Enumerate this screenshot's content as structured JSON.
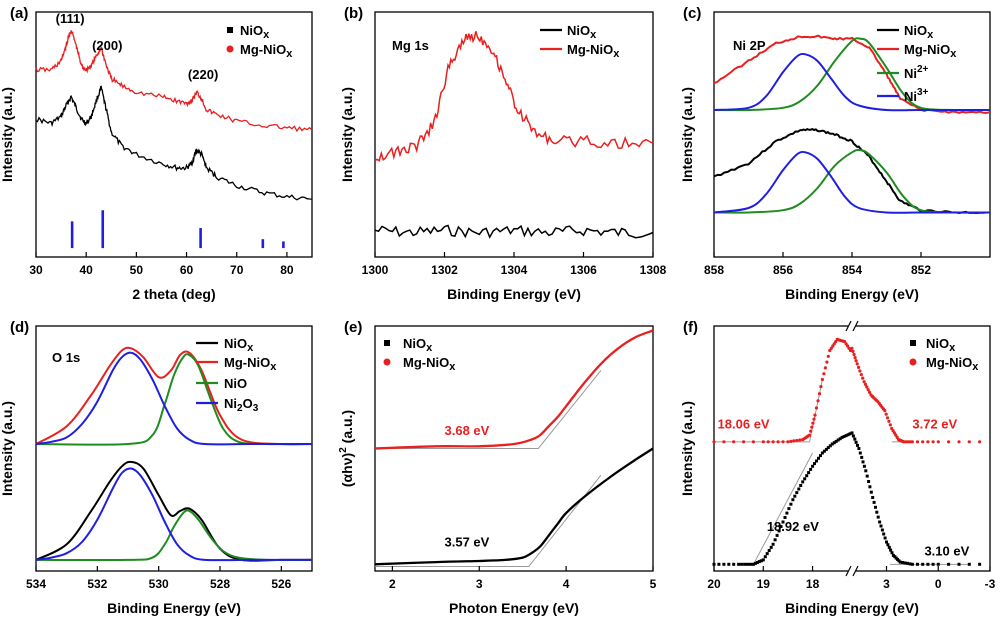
{
  "colors": {
    "black": "#000000",
    "red": "#e8201f",
    "green": "#1f8c1f",
    "blue": "#1f1fe0",
    "gray": "#9a9a9a"
  },
  "chart_data": [
    {
      "panel": "(a)",
      "type": "line",
      "xlabel": "2 theta (deg)",
      "ylabel": "Intensity (a.u.)",
      "xlim": [
        30,
        85
      ],
      "xticks": [
        30,
        40,
        50,
        60,
        70,
        80
      ],
      "series": [
        {
          "name": "NiOx",
          "color": "#000000",
          "x": [
            30,
            33,
            35,
            36,
            37,
            38,
            39,
            40,
            41,
            42,
            43,
            44,
            45,
            47,
            50,
            55,
            58,
            60,
            61,
            62,
            63,
            64,
            66,
            70,
            75,
            80,
            85
          ],
          "y": [
            0.62,
            0.6,
            0.63,
            0.68,
            0.72,
            0.67,
            0.62,
            0.6,
            0.63,
            0.7,
            0.76,
            0.66,
            0.56,
            0.5,
            0.46,
            0.42,
            0.4,
            0.4,
            0.42,
            0.48,
            0.46,
            0.4,
            0.36,
            0.32,
            0.29,
            0.27,
            0.26
          ]
        },
        {
          "name": "Mg-NiOx",
          "color": "#e8201f",
          "x": [
            30,
            33,
            35,
            36,
            37,
            38,
            39,
            40,
            41,
            42,
            43,
            44,
            45,
            47,
            50,
            55,
            58,
            60,
            61,
            62,
            63,
            64,
            66,
            70,
            75,
            80,
            85
          ],
          "y": [
            0.84,
            0.84,
            0.88,
            0.95,
            1.02,
            0.95,
            0.86,
            0.84,
            0.86,
            0.9,
            0.94,
            0.86,
            0.8,
            0.77,
            0.74,
            0.72,
            0.7,
            0.69,
            0.7,
            0.74,
            0.71,
            0.66,
            0.64,
            0.61,
            0.59,
            0.58,
            0.57
          ]
        }
      ],
      "reference_lines": [
        {
          "x": 37.2,
          "h": 0.12
        },
        {
          "x": 43.3,
          "h": 0.17
        },
        {
          "x": 62.8,
          "h": 0.09
        },
        {
          "x": 75.2,
          "h": 0.04
        },
        {
          "x": 79.3,
          "h": 0.03
        }
      ],
      "ylim": [
        0,
        1.1
      ],
      "annotations": [
        {
          "text": "(111)",
          "x": 36.8,
          "y": 1.05
        },
        {
          "text": "(200)",
          "x": 44.2,
          "y": 0.93
        },
        {
          "text": "(220)",
          "x": 63.3,
          "y": 0.8
        }
      ]
    },
    {
      "panel": "(b)",
      "type": "line",
      "title": "Mg 1s",
      "xlabel": "Binding Energy (eV)",
      "ylabel": "Intensity (a.u.)",
      "xlim": [
        1300,
        1308
      ],
      "xticks": [
        1300,
        1302,
        1304,
        1306,
        1308
      ],
      "ylim": [
        0,
        1.1
      ],
      "series": [
        {
          "name": "NiOx",
          "color": "#000000",
          "x": [
            1300,
            1301,
            1302,
            1303,
            1304,
            1305,
            1306,
            1307,
            1308
          ],
          "y": [
            0.12,
            0.11,
            0.12,
            0.11,
            0.12,
            0.11,
            0.12,
            0.11,
            0.11
          ]
        },
        {
          "name": "Mg-NiOx",
          "color": "#e8201f",
          "x": [
            1300,
            1300.6,
            1301.2,
            1301.7,
            1302.1,
            1302.5,
            1302.9,
            1303.3,
            1303.7,
            1304.1,
            1304.6,
            1305.2,
            1306,
            1307,
            1308
          ],
          "y": [
            0.45,
            0.47,
            0.5,
            0.6,
            0.84,
            0.97,
            1.0,
            0.95,
            0.82,
            0.66,
            0.56,
            0.52,
            0.52,
            0.51,
            0.51
          ]
        }
      ]
    },
    {
      "panel": "(c)",
      "type": "line",
      "title": "Ni 2P",
      "xlabel": "Binding Energy (eV)",
      "ylabel": "Intensity (a.u.)",
      "xlim": [
        858,
        850
      ],
      "xticks": [
        858,
        856,
        854,
        852
      ],
      "ylim": [
        0,
        1.1
      ],
      "series": [
        {
          "name": "NiOx",
          "color": "#000000",
          "x": [
            858,
            857,
            856.2,
            855.5,
            855,
            854.5,
            854,
            853.5,
            853,
            852.6,
            852,
            851,
            850
          ],
          "y": [
            0.36,
            0.42,
            0.52,
            0.57,
            0.57,
            0.55,
            0.52,
            0.45,
            0.34,
            0.25,
            0.21,
            0.2,
            0.2
          ]
        },
        {
          "name": "Mg-NiOx",
          "color": "#e8201f",
          "x": [
            858,
            857,
            856.2,
            855.5,
            855,
            854.5,
            854,
            853.5,
            853,
            852.6,
            852,
            851,
            850
          ],
          "y": [
            0.78,
            0.88,
            0.96,
            0.99,
            0.99,
            0.98,
            0.98,
            0.94,
            0.82,
            0.71,
            0.66,
            0.65,
            0.65
          ]
        },
        {
          "name": "Ni2+",
          "label_text": "Ni",
          "label_sup": "2+",
          "color": "#1f8c1f",
          "x": [
            858,
            857,
            856,
            855.5,
            855,
            854.5,
            854,
            853.75,
            853.5,
            853,
            852.5,
            852,
            851,
            850
          ],
          "y": [
            0.66,
            0.66,
            0.67,
            0.7,
            0.77,
            0.88,
            0.97,
            0.98,
            0.96,
            0.85,
            0.73,
            0.67,
            0.66,
            0.66
          ]
        },
        {
          "name": "Ni3+",
          "label_text": "Ni",
          "label_sup": "3+",
          "color": "#1f1fe0",
          "x": [
            858,
            857,
            856.5,
            856,
            855.6,
            855.35,
            855,
            854.6,
            854.2,
            853.8,
            853,
            852,
            850
          ],
          "y": [
            0.66,
            0.67,
            0.72,
            0.83,
            0.9,
            0.91,
            0.88,
            0.8,
            0.72,
            0.68,
            0.66,
            0.66,
            0.66
          ]
        }
      ],
      "lower_fits": [
        {
          "color": "#1f8c1f",
          "x": [
            858,
            857,
            856,
            855.5,
            855,
            854.5,
            854,
            853.75,
            853.5,
            853,
            852.5,
            852,
            851,
            850
          ],
          "y": [
            0.2,
            0.2,
            0.21,
            0.24,
            0.31,
            0.41,
            0.47,
            0.48,
            0.46,
            0.38,
            0.27,
            0.21,
            0.2,
            0.2
          ]
        },
        {
          "color": "#1f1fe0",
          "x": [
            858,
            857,
            856.5,
            856,
            855.6,
            855.35,
            855,
            854.6,
            854.2,
            853.8,
            853,
            852,
            850
          ],
          "y": [
            0.2,
            0.22,
            0.28,
            0.39,
            0.46,
            0.47,
            0.44,
            0.36,
            0.27,
            0.22,
            0.2,
            0.2,
            0.2
          ]
        }
      ]
    },
    {
      "panel": "(d)",
      "type": "line",
      "title": "O 1s",
      "xlabel": "Binding Energy (eV)",
      "ylabel": "Intensity (a.u.)",
      "xlim": [
        534,
        525
      ],
      "xticks": [
        534,
        532,
        530,
        528,
        526
      ],
      "ylim": [
        0,
        1.1
      ],
      "series": [
        {
          "name": "NiOx",
          "color": "#000000",
          "x": [
            534,
            533,
            532.2,
            531.6,
            531.2,
            530.9,
            530.5,
            530,
            529.6,
            529.3,
            529,
            528.6,
            528,
            527.3,
            526,
            525
          ],
          "y": [
            0.05,
            0.12,
            0.27,
            0.4,
            0.47,
            0.49,
            0.46,
            0.34,
            0.25,
            0.27,
            0.28,
            0.23,
            0.1,
            0.05,
            0.05,
            0.05
          ]
        },
        {
          "name": "Mg-NiOx",
          "color": "#e8201f",
          "x": [
            534,
            533,
            532.2,
            531.6,
            531.2,
            530.9,
            530.5,
            530,
            529.6,
            529.3,
            529,
            528.6,
            528,
            527.3,
            526,
            525
          ],
          "y": [
            0.57,
            0.65,
            0.79,
            0.92,
            0.99,
            1.0,
            0.96,
            0.87,
            0.9,
            0.97,
            0.98,
            0.9,
            0.7,
            0.59,
            0.57,
            0.57
          ]
        },
        {
          "name": "NiO",
          "color": "#1f8c1f",
          "x": [
            534,
            531,
            530.2,
            529.8,
            529.5,
            529.2,
            529,
            528.7,
            528.3,
            527.9,
            527.4,
            526.5,
            525
          ],
          "y": [
            0.57,
            0.57,
            0.61,
            0.75,
            0.88,
            0.96,
            0.97,
            0.92,
            0.77,
            0.64,
            0.58,
            0.57,
            0.57
          ]
        },
        {
          "name": "Ni2O3",
          "label_text": "Ni",
          "label_sub": "2",
          "label_text2": "O",
          "label_sub2": "3",
          "color": "#1f1fe0",
          "x": [
            534,
            533.5,
            533,
            532.5,
            532,
            531.5,
            531.2,
            530.9,
            530.6,
            530.2,
            529.8,
            529.4,
            529,
            528.5,
            527,
            525
          ],
          "y": [
            0.57,
            0.58,
            0.6,
            0.66,
            0.76,
            0.9,
            0.96,
            0.98,
            0.95,
            0.86,
            0.74,
            0.64,
            0.59,
            0.57,
            0.57,
            0.57
          ]
        }
      ],
      "lower_fits": [
        {
          "color": "#1f8c1f",
          "x": [
            534,
            531,
            530.2,
            529.8,
            529.5,
            529.2,
            529,
            528.7,
            528.3,
            527.9,
            527.4,
            526.5,
            525
          ],
          "y": [
            0.05,
            0.05,
            0.06,
            0.12,
            0.2,
            0.26,
            0.27,
            0.23,
            0.15,
            0.09,
            0.06,
            0.05,
            0.05
          ]
        },
        {
          "color": "#1f1fe0",
          "x": [
            534,
            533.5,
            533,
            532.5,
            532,
            531.5,
            531.2,
            530.9,
            530.6,
            530.2,
            529.8,
            529.4,
            529,
            528.5,
            527,
            525
          ],
          "y": [
            0.05,
            0.06,
            0.08,
            0.13,
            0.23,
            0.37,
            0.44,
            0.46,
            0.43,
            0.34,
            0.22,
            0.12,
            0.07,
            0.05,
            0.05,
            0.05
          ]
        }
      ]
    },
    {
      "panel": "(e)",
      "type": "line",
      "xlabel": "Photon Energy (eV)",
      "ylabel": "(αhν)² (a.u.)",
      "ylabel_parts": {
        "open": "(",
        "alpha": "α",
        "h": "h",
        "nu": "ν",
        "close": ")",
        "sup": "2",
        "tail": " (a.u.)"
      },
      "xlim": [
        1.8,
        5
      ],
      "xticks": [
        2,
        3,
        4,
        5
      ],
      "ylim": [
        0,
        1.1
      ],
      "series": [
        {
          "name": "NiOx",
          "color": "#000000",
          "x": [
            1.8,
            2.5,
            3.0,
            3.3,
            3.5,
            3.6,
            3.7,
            3.8,
            3.9,
            4.0,
            4.2,
            4.5,
            4.8,
            5.0
          ],
          "y": [
            0.03,
            0.04,
            0.045,
            0.05,
            0.06,
            0.08,
            0.11,
            0.16,
            0.21,
            0.26,
            0.33,
            0.42,
            0.5,
            0.55
          ]
        },
        {
          "name": "Mg-NiOx",
          "color": "#e8201f",
          "x": [
            1.8,
            2.5,
            3.0,
            3.4,
            3.6,
            3.7,
            3.8,
            3.9,
            4.0,
            4.2,
            4.4,
            4.6,
            4.8,
            5.0
          ],
          "y": [
            0.55,
            0.56,
            0.56,
            0.57,
            0.59,
            0.61,
            0.65,
            0.69,
            0.74,
            0.84,
            0.93,
            1.0,
            1.05,
            1.08
          ]
        }
      ],
      "tangents": [
        {
          "x": [
            1.8,
            3.57,
            4.4
          ],
          "y": [
            0.02,
            0.02,
            0.43
          ]
        },
        {
          "x": [
            1.8,
            3.68,
            4.4
          ],
          "y": [
            0.55,
            0.55,
            0.9
          ]
        }
      ],
      "annotations": [
        {
          "text": "3.68 eV",
          "color": "#e8201f",
          "x": 2.6,
          "y": 0.61
        },
        {
          "text": "3.57 eV",
          "color": "#000000",
          "x": 2.6,
          "y": 0.11
        }
      ]
    },
    {
      "panel": "(f)",
      "type": "line",
      "xlabel": "Binding Energy (eV)",
      "ylabel": "Intensity (a.u.)",
      "xticks_left": [
        20,
        19,
        18
      ],
      "xticks_right": [
        3,
        0,
        -3
      ],
      "xlim_left": [
        20,
        17.2
      ],
      "xlim_right": [
        5,
        -3
      ],
      "ylim": [
        0,
        1.1
      ],
      "series": [
        {
          "name": "NiOx",
          "color": "#000000",
          "x_left": [
            20,
            19.5,
            19.2,
            19.0,
            18.8,
            18.6,
            18.4,
            18.2,
            18.0,
            17.8,
            17.6,
            17.4,
            17.2
          ],
          "y_left": [
            0.03,
            0.03,
            0.03,
            0.05,
            0.12,
            0.22,
            0.32,
            0.4,
            0.47,
            0.53,
            0.57,
            0.6,
            0.62
          ],
          "x_right": [
            5,
            4.6,
            4.2,
            3.8,
            3.4,
            3.0,
            2.6,
            2.2,
            1.5,
            0,
            -3
          ],
          "y_right": [
            0.62,
            0.55,
            0.45,
            0.33,
            0.22,
            0.13,
            0.07,
            0.04,
            0.03,
            0.03,
            0.03
          ]
        },
        {
          "name": "Mg-NiOx",
          "color": "#e8201f",
          "x_left": [
            20,
            19.0,
            18.5,
            18.2,
            18.06,
            17.95,
            17.8,
            17.65,
            17.5,
            17.35,
            17.2
          ],
          "y_left": [
            0.58,
            0.58,
            0.58,
            0.59,
            0.61,
            0.7,
            0.86,
            0.99,
            1.04,
            1.03,
            0.98
          ],
          "x_right": [
            5,
            4.7,
            4.3,
            3.9,
            3.5,
            3.1,
            2.7,
            2.3,
            2.0,
            1.5,
            0,
            -3
          ],
          "y_right": [
            1.0,
            0.93,
            0.85,
            0.79,
            0.76,
            0.72,
            0.64,
            0.59,
            0.58,
            0.58,
            0.58,
            0.58
          ]
        }
      ],
      "annotations": [
        {
          "text": "18.06 eV",
          "color": "#e8201f",
          "side": "left",
          "x": 19.4,
          "y": 0.64
        },
        {
          "text": "3.72 eV",
          "color": "#e8201f",
          "side": "right",
          "x": 0.2,
          "y": 0.64
        },
        {
          "text": "18.92 eV",
          "color": "#000000",
          "side": "left",
          "x": 18.4,
          "y": 0.18
        },
        {
          "text": "3.10 eV",
          "color": "#000000",
          "side": "right",
          "x": -0.5,
          "y": 0.07
        }
      ]
    }
  ]
}
